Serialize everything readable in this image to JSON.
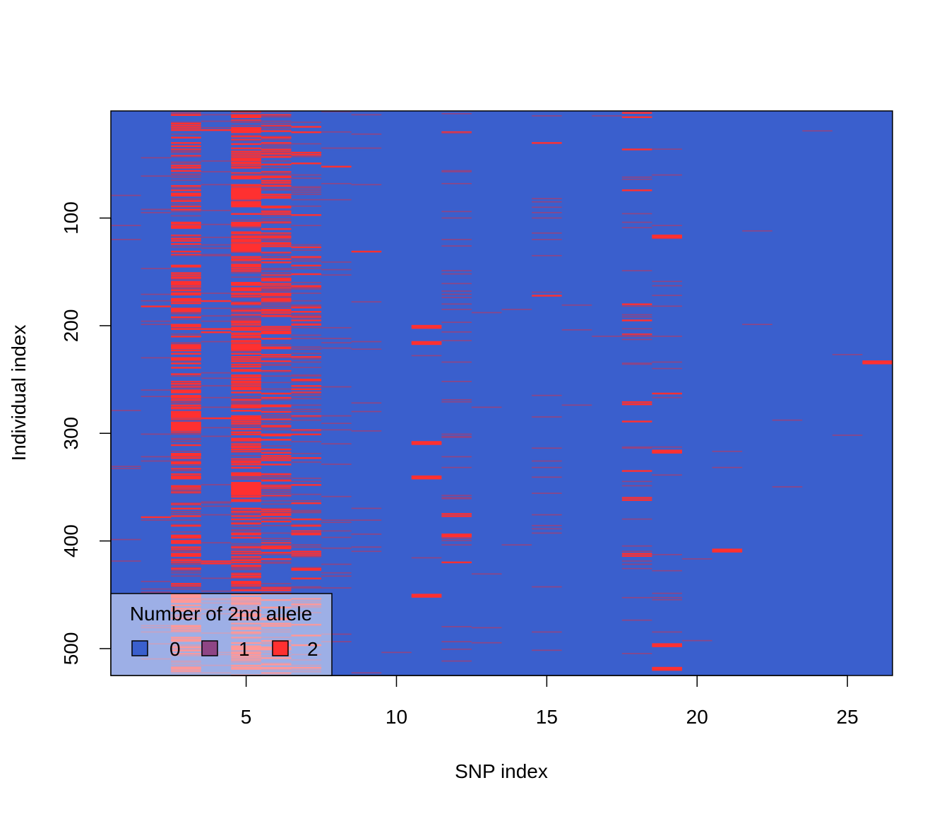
{
  "chart_data": {
    "type": "heatmap",
    "xlabel": "SNP index",
    "ylabel": "Individual index",
    "xlim": [
      0.5,
      26.5
    ],
    "ylim": [
      525,
      0.5
    ],
    "x_ticks": [
      5,
      10,
      15,
      20,
      25
    ],
    "y_ticks": [
      100,
      200,
      300,
      400,
      500
    ],
    "n_snps": 26,
    "n_individuals": 525,
    "colors": {
      "0": "#3a5fcd",
      "1": "#8e4585",
      "2": "#ff3030"
    },
    "legend": {
      "title": "Number of 2nd allele",
      "position": "bottom-left",
      "entries": [
        {
          "label": "0",
          "color": "#3a5fcd"
        },
        {
          "label": "1",
          "color": "#8e4585"
        },
        {
          "label": "2",
          "color": "#ff3030"
        }
      ]
    },
    "snp_minor_allele_frequency": [
      0.04,
      0.06,
      0.55,
      0.12,
      0.6,
      0.5,
      0.3,
      0.06,
      0.04,
      0.01,
      0.005,
      0.12,
      0.008,
      0.004,
      0.05,
      0.008,
      0.005,
      0.1,
      0.05,
      0.002,
      0.004,
      0.004,
      0.002,
      0.002,
      0.004,
      0.002
    ],
    "notable_cells": [
      {
        "snp": 3,
        "individuals": [
          260,
          265,
          280,
          283,
          290,
          293,
          295,
          395,
          400,
          450,
          455
        ]
      },
      {
        "snp": 5,
        "individuals": [
          75,
          78,
          85,
          125,
          127,
          160,
          165,
          218,
          220,
          352,
          355
        ]
      },
      {
        "snp": 11,
        "individuals": [
          200,
          215,
          308,
          340,
          450
        ]
      },
      {
        "snp": 19,
        "individuals": [
          116,
          316,
          496,
          518
        ]
      },
      {
        "snp": 21,
        "individuals": [
          408
        ]
      },
      {
        "snp": 12,
        "individuals": [
          394
        ]
      },
      {
        "snp": 26,
        "individuals": [
          233
        ]
      }
    ]
  }
}
